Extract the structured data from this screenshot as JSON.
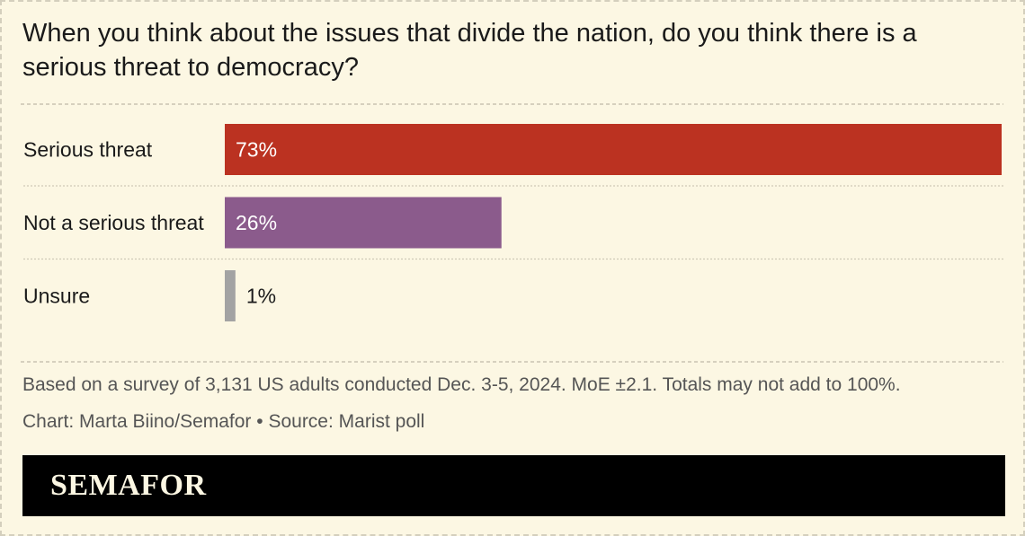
{
  "chart_data": {
    "type": "bar",
    "orientation": "horizontal",
    "title": "When you think about the issues that divide the nation, do you think there is a serious threat to democracy?",
    "categories": [
      "Serious threat",
      "Not a serious threat",
      "Unsure"
    ],
    "values": [
      73,
      26,
      1
    ],
    "value_labels": [
      "73%",
      "26%",
      "1%"
    ],
    "colors": [
      "#bb3221",
      "#8b5b8c",
      "#a3a3a3"
    ],
    "value_label_colors": [
      "#ffffff",
      "#ffffff",
      "#1a1a1a"
    ],
    "xlim": [
      0,
      73
    ],
    "grid": false,
    "legend": "none"
  },
  "note": "Based on a survey of 3,131 US adults conducted Dec. 3-5, 2024. MoE ±2.1. Totals may not add to 100%.",
  "credit": "Chart: Marta Biino/Semafor • Source: Marist poll",
  "brand": {
    "logo": "SEMAFOR",
    "background": "#fcf7e3",
    "footer_color": "#000000"
  }
}
